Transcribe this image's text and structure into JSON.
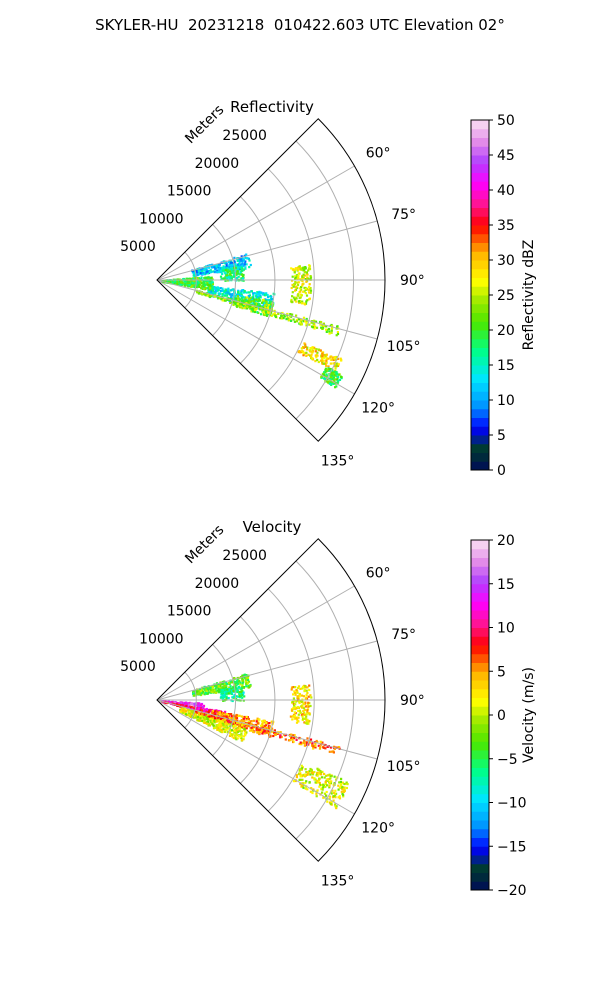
{
  "suptitle": "SKYLER-HU  20231218  010422.603 UTC Elevation 02°",
  "chart_data": [
    {
      "type": "polar-sector",
      "title": "Reflectivity",
      "range_axis_label": "Meters",
      "range_ticks": [
        5000,
        10000,
        15000,
        20000,
        25000
      ],
      "range_tick_labels": [
        "5000",
        "10000",
        "15000",
        "20000",
        "25000"
      ],
      "range_max": 29000,
      "angle_range_deg": [
        45,
        135
      ],
      "angle_tick_labels": [
        "60°",
        "75°",
        "90°",
        "105°",
        "120°",
        "135°"
      ],
      "angle_ticks_deg": [
        60,
        75,
        90,
        105,
        120,
        135
      ],
      "grid": true,
      "colorbar": {
        "label": "Reflectivity dBZ",
        "min": 0,
        "max": 50,
        "ticks": [
          0,
          5,
          10,
          15,
          20,
          25,
          30,
          35,
          40,
          45,
          50
        ],
        "tick_labels": [
          "0",
          "5",
          "10",
          "15",
          "20",
          "25",
          "30",
          "35",
          "40",
          "45",
          "50"
        ]
      },
      "features": [
        {
          "az_from": 73,
          "az_to": 82,
          "r_from": 4500,
          "r_to": 12000,
          "value": 12
        },
        {
          "az_from": 80,
          "az_to": 90,
          "r_from": 8000,
          "r_to": 11000,
          "value": 18
        },
        {
          "az_from": 96,
          "az_to": 106,
          "r_from": 6500,
          "r_to": 15000,
          "value": 14
        },
        {
          "az_from": 100,
          "az_to": 108,
          "r_from": 10000,
          "r_to": 15000,
          "value": 22
        },
        {
          "az_from": 85,
          "az_to": 100,
          "r_from": 500,
          "r_to": 7000,
          "value": 20
        },
        {
          "az_from": 104,
          "az_to": 107,
          "r_from": 5000,
          "r_to": 24000,
          "value": 24
        },
        {
          "az_from": 113,
          "az_to": 117,
          "r_from": 20000,
          "r_to": 25500,
          "value": 28
        },
        {
          "az_from": 117,
          "az_to": 121,
          "r_from": 24000,
          "r_to": 26500,
          "value": 20
        },
        {
          "az_from": 84,
          "az_to": 99,
          "r_from": 17000,
          "r_to": 19500,
          "value": 26
        }
      ]
    },
    {
      "type": "polar-sector",
      "title": "Velocity",
      "range_axis_label": "Meters",
      "range_ticks": [
        5000,
        10000,
        15000,
        20000,
        25000
      ],
      "range_tick_labels": [
        "5000",
        "10000",
        "15000",
        "20000",
        "25000"
      ],
      "range_max": 29000,
      "angle_range_deg": [
        45,
        135
      ],
      "angle_tick_labels": [
        "60°",
        "75°",
        "90°",
        "105°",
        "120°",
        "135°"
      ],
      "angle_ticks_deg": [
        60,
        75,
        90,
        105,
        120,
        135
      ],
      "grid": true,
      "colorbar": {
        "label": "Velocity (m/s)",
        "min": -20,
        "max": 20,
        "ticks": [
          -20,
          -15,
          -10,
          -5,
          0,
          5,
          10,
          15,
          20
        ],
        "tick_labels": [
          "−20",
          "−15",
          "−10",
          "−5",
          "0",
          "5",
          "10",
          "15",
          "20"
        ]
      },
      "features": [
        {
          "az_from": 73,
          "az_to": 82,
          "r_from": 4500,
          "r_to": 12000,
          "value": -3
        },
        {
          "az_from": 80,
          "az_to": 90,
          "r_from": 8000,
          "r_to": 11000,
          "value": -6
        },
        {
          "az_from": 93,
          "az_to": 99,
          "r_from": 500,
          "r_to": 6000,
          "value": 14
        },
        {
          "az_from": 99,
          "az_to": 104,
          "r_from": 500,
          "r_to": 9000,
          "value": 10
        },
        {
          "az_from": 100,
          "az_to": 108,
          "r_from": 7000,
          "r_to": 15000,
          "value": 5
        },
        {
          "az_from": 106,
          "az_to": 116,
          "r_from": 3000,
          "r_to": 12000,
          "value": 1
        },
        {
          "az_from": 104,
          "az_to": 107,
          "r_from": 5000,
          "r_to": 24000,
          "value": 6
        },
        {
          "az_from": 113,
          "az_to": 121,
          "r_from": 20000,
          "r_to": 26500,
          "value": 1
        },
        {
          "az_from": 84,
          "az_to": 99,
          "r_from": 17000,
          "r_to": 19500,
          "value": 3
        }
      ]
    }
  ]
}
